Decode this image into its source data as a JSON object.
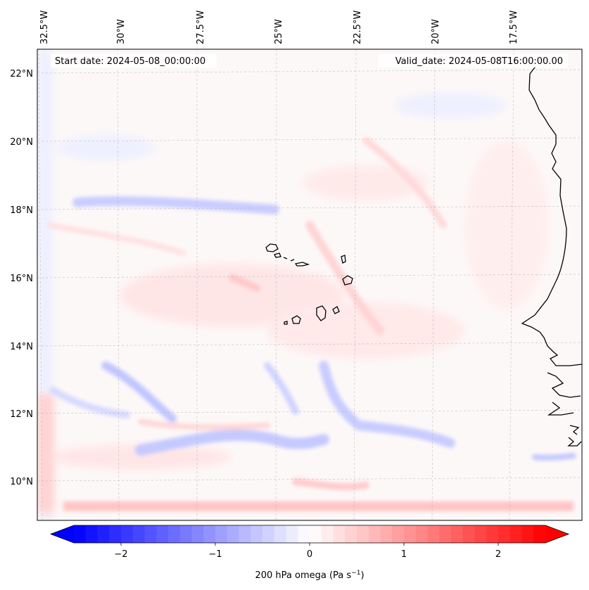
{
  "map": {
    "start_label": "Start date: 2024-05-08_00:00:00",
    "valid_label": "Valid_date: 2024-05-08T16:00:00.00",
    "lon_labels": [
      "32.5°W",
      "30°W",
      "27.5°W",
      "25°W",
      "22.5°W",
      "20°W",
      "17.5°W"
    ],
    "lat_labels": [
      "22°N",
      "20°N",
      "18°N",
      "16°N",
      "14°N",
      "12°N",
      "10°N"
    ],
    "extent": {
      "lon_min": -32.5,
      "lon_max": -15.0,
      "lat_min": 8.8,
      "lat_max": 22.8
    }
  },
  "colorbar": {
    "label_main": "200 hPa omega (Pa s",
    "label_exp": "−1",
    "label_end": ")",
    "ticks": [
      {
        "value": -2,
        "label": "−2"
      },
      {
        "value": -1,
        "label": "−1"
      },
      {
        "value": 0,
        "label": "0"
      },
      {
        "value": 1,
        "label": "1"
      },
      {
        "value": 2,
        "label": "2"
      }
    ],
    "range": [
      -2.5,
      2.5
    ],
    "levels": 40,
    "colormap": "bwr",
    "extend": "both",
    "colors": {
      "low": "#0000ff",
      "mid": "#ffffff",
      "high": "#ff0000"
    }
  }
}
